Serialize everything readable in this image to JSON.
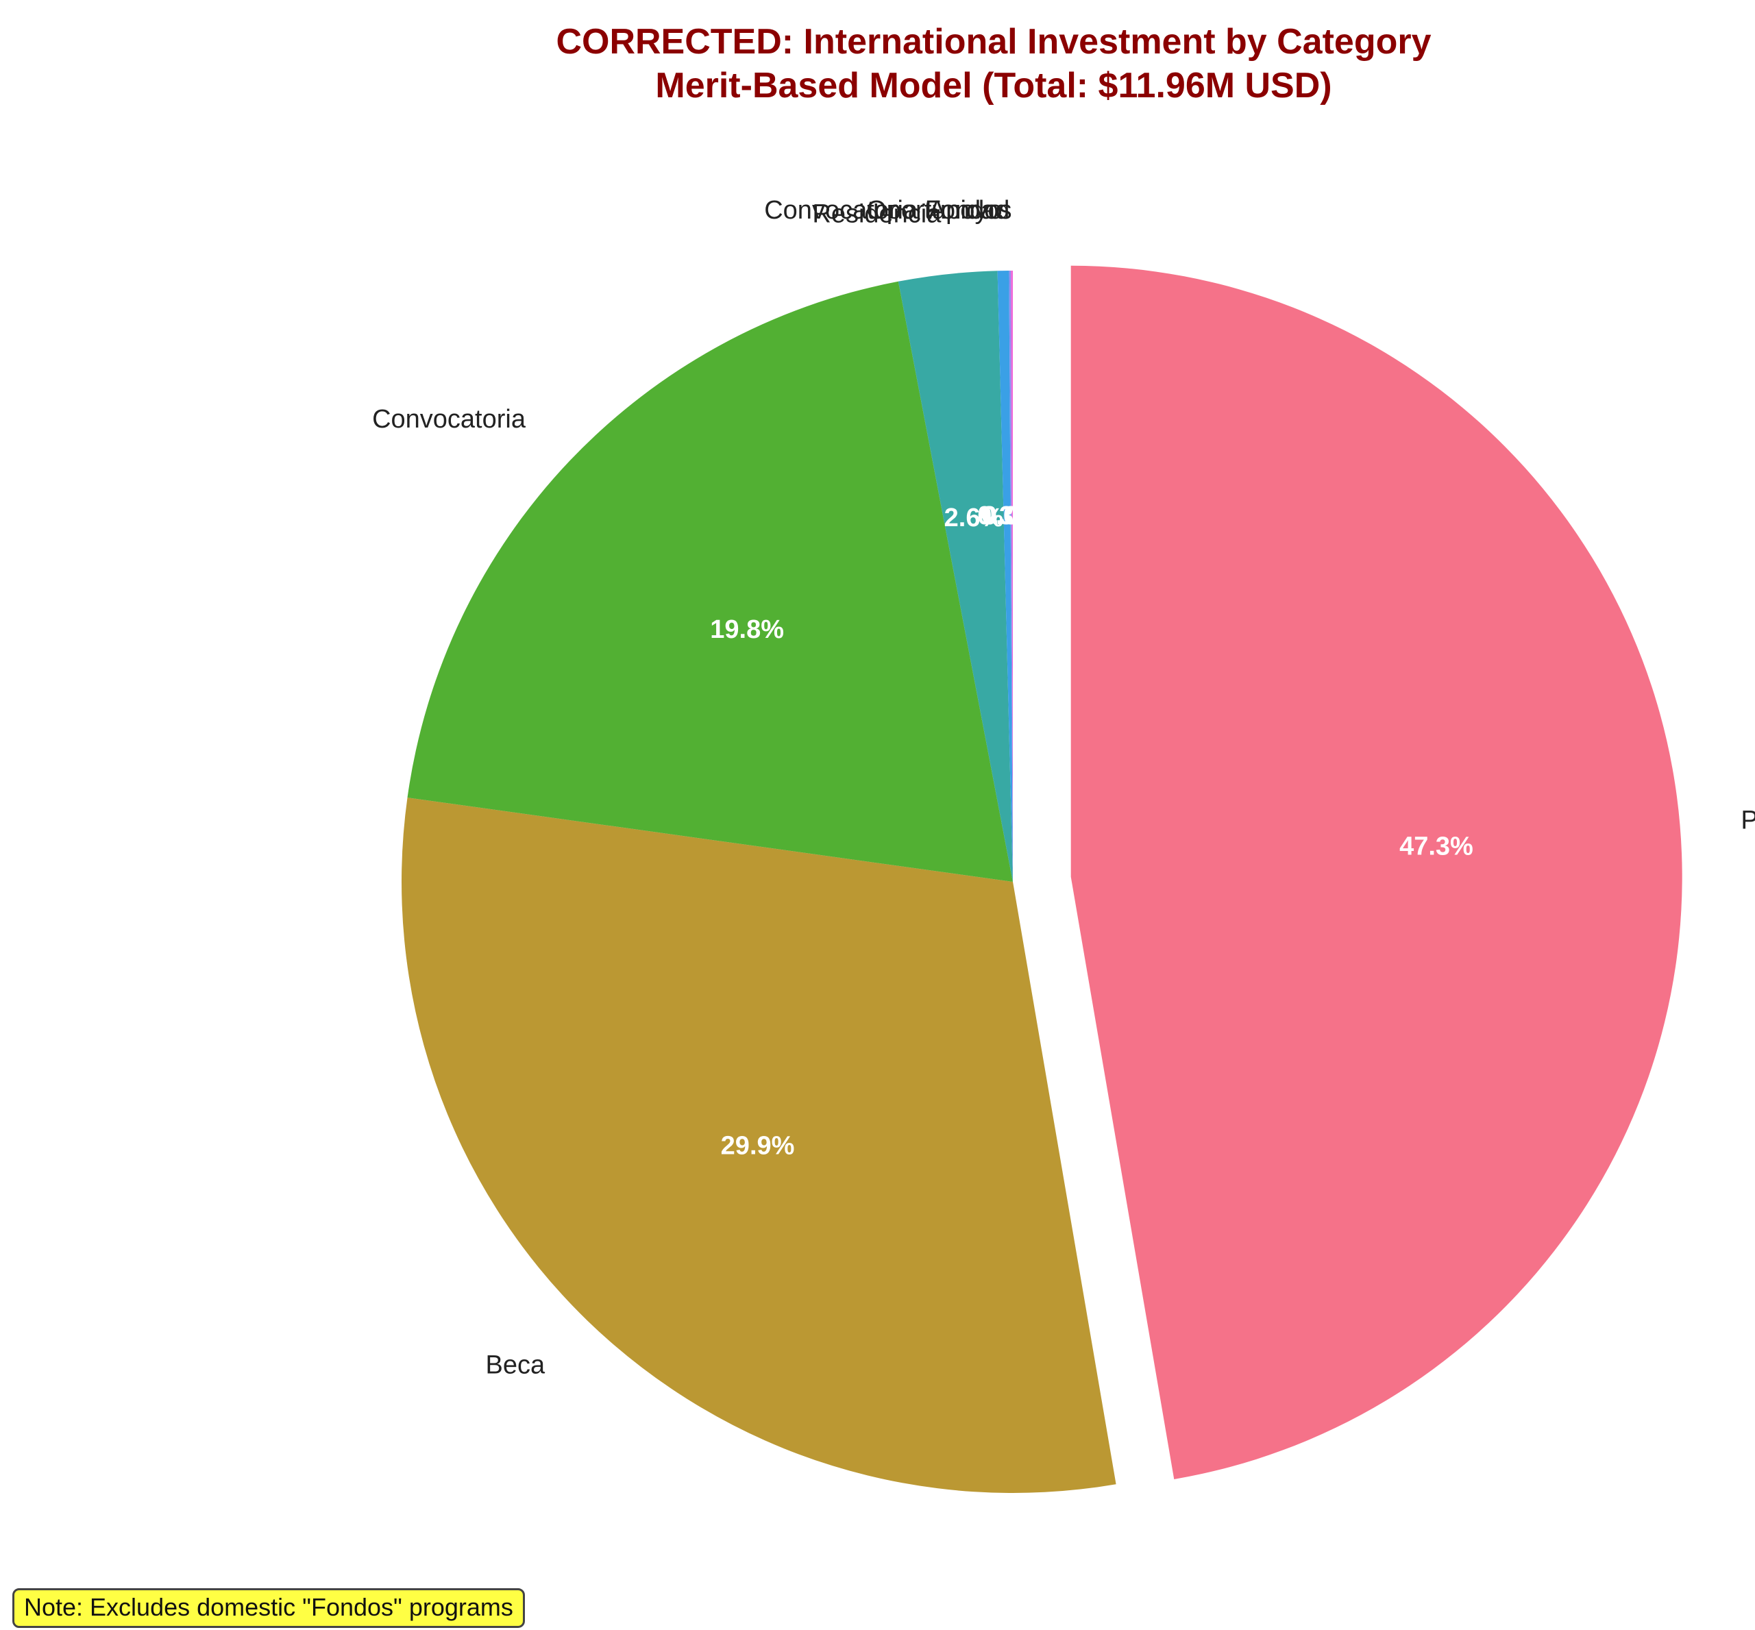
{
  "colors": {
    "title": "#8b0000",
    "note_background": "#ffff44"
  },
  "chart_data": {
    "type": "pie",
    "title": "CORRECTED: International Investment by Category",
    "subtitle": "Merit-Based Model (Total: $11.96M USD)",
    "total_usd_millions": 11.96,
    "start_angle_deg": 90,
    "direction": "clockwise",
    "slices": [
      {
        "name": "Premio",
        "percent": 47.3,
        "pct_label": "47.3%",
        "color": "#f57289",
        "exploded": true
      },
      {
        "name": "Beca",
        "percent": 29.9,
        "pct_label": "29.9%",
        "color": "#bb9833",
        "exploded": false
      },
      {
        "name": "Convocatoria",
        "percent": 19.8,
        "pct_label": "19.8%",
        "color": "#52b033",
        "exploded": false
      },
      {
        "name": "Residencia",
        "percent": 2.6,
        "pct_label": "2.6%",
        "color": "#38a9a4",
        "exploded": false
      },
      {
        "name": "Apoyo",
        "percent": 0.3,
        "pct_label": "0.3%",
        "color": "#3aa0e6",
        "exploded": false
      },
      {
        "name": "Oportunidad",
        "percent": 0.05,
        "pct_label": "0.0%",
        "color": "#8f8df0",
        "exploded": false
      },
      {
        "name": "Convocatoria Fondos",
        "percent": 0.05,
        "pct_label": "0.0%",
        "color": "#f066d8",
        "exploded": false
      }
    ]
  },
  "note": {
    "text": "Note: Excludes domestic \"Fondos\" programs"
  }
}
